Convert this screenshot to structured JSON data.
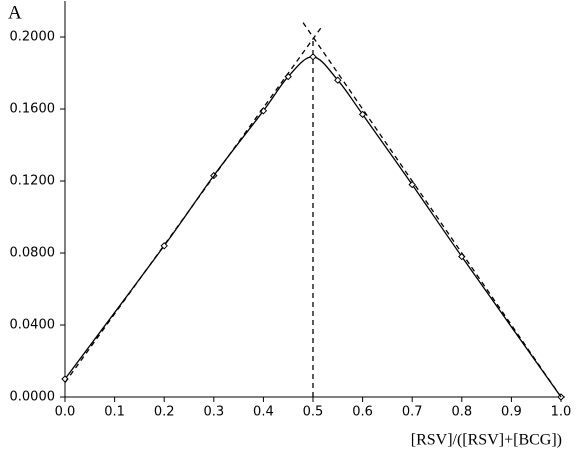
{
  "chart_data": {
    "type": "line",
    "panel_label": "A",
    "x_label": "[RSV]/([RSV]+[BCG])",
    "xlim": [
      0,
      1.0
    ],
    "xticks": [
      {
        "value": 0,
        "label": "0.0"
      },
      0.1,
      0.2,
      0.3,
      0.4,
      0.5,
      0.6,
      0.7,
      0.8,
      0.9,
      {
        "value": 1.0,
        "label": "1.0"
      }
    ],
    "ylim": [
      0,
      0.22
    ],
    "yticks": [
      {
        "value": 0,
        "label": "0.0000"
      },
      {
        "value": 0.04,
        "label": "0.0400"
      },
      {
        "value": 0.08,
        "label": "0.0800"
      },
      {
        "value": 0.12,
        "label": "0.1200"
      },
      {
        "value": 0.16,
        "label": "0.1600"
      },
      {
        "value": 0.2,
        "label": "0.2000"
      }
    ],
    "grid": false,
    "series": [
      {
        "color": "#000000",
        "smooth": true,
        "marker": "diamond",
        "x": [
          0.0,
          0.2,
          0.3,
          0.4,
          0.45,
          0.5,
          0.55,
          0.6,
          0.7,
          0.8,
          1.0
        ],
        "values": [
          0.01,
          0.084,
          0.123,
          0.159,
          0.178,
          0.189,
          0.176,
          0.157,
          0.118,
          0.078,
          0.0
        ]
      },
      {
        "color": "#000000",
        "dash": "5,4",
        "x": [
          0.0,
          0.52
        ],
        "values": [
          0.008,
          0.2066
        ]
      },
      {
        "color": "#000000",
        "dash": "5,4",
        "x": [
          0.48,
          1.0
        ],
        "values": [
          0.208,
          0.0
        ]
      },
      {
        "color": "#000000",
        "dash": "5,4",
        "x": [
          0.5,
          0.5
        ],
        "values": [
          0.0,
          0.2
        ]
      }
    ]
  }
}
